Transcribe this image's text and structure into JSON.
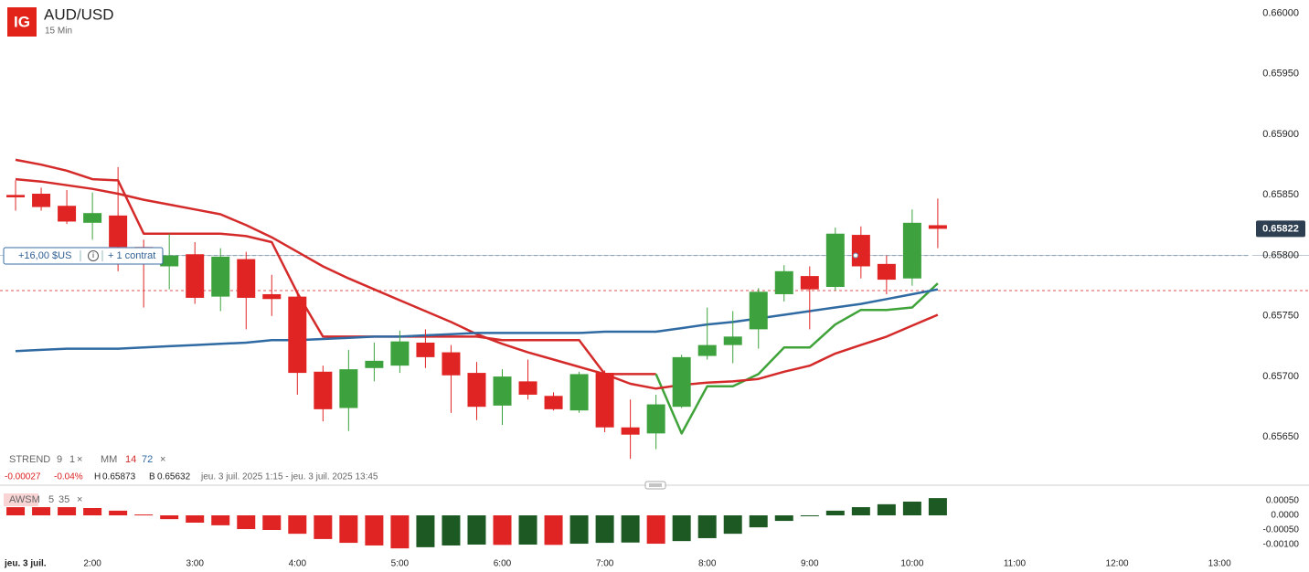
{
  "chart_data": [
    {
      "type": "candlestick",
      "logo": "IG",
      "title": "AUD/USD",
      "subtitle": "15 Min",
      "x": [
        1.25,
        1.5,
        1.75,
        2,
        2.25,
        2.5,
        2.75,
        3,
        3.25,
        3.5,
        3.75,
        4,
        4.25,
        4.5,
        4.75,
        5,
        5.25,
        5.5,
        5.75,
        6,
        6.25,
        6.5,
        6.75,
        7,
        7.25,
        7.5,
        7.75,
        8,
        8.25,
        8.5,
        8.75,
        9,
        9.25,
        9.5,
        9.75,
        10,
        10.25
      ],
      "open": [
        0.6585,
        0.65851,
        0.65841,
        0.65827,
        0.65833,
        0.65807,
        0.65791,
        0.65801,
        0.65766,
        0.65797,
        0.65768,
        0.65766,
        0.65704,
        0.65674,
        0.65707,
        0.65709,
        0.65728,
        0.6572,
        0.65703,
        0.65676,
        0.65696,
        0.65684,
        0.65672,
        0.65703,
        0.65658,
        0.65653,
        0.65675,
        0.65717,
        0.65726,
        0.65739,
        0.65768,
        0.65783,
        0.65774,
        0.65817,
        0.65793,
        0.65781,
        0.65825
      ],
      "high": [
        0.65862,
        0.65856,
        0.65854,
        0.65852,
        0.65873,
        0.65813,
        0.65818,
        0.65811,
        0.65806,
        0.65803,
        0.65784,
        0.65769,
        0.65709,
        0.65722,
        0.65728,
        0.65738,
        0.65739,
        0.65726,
        0.65712,
        0.65706,
        0.65714,
        0.65687,
        0.65704,
        0.65705,
        0.65681,
        0.65685,
        0.65718,
        0.65757,
        0.65754,
        0.65773,
        0.65792,
        0.65791,
        0.65823,
        0.65824,
        0.658,
        0.65838,
        0.65847
      ],
      "low": [
        0.65837,
        0.65837,
        0.65826,
        0.65813,
        0.65787,
        0.65757,
        0.65772,
        0.6576,
        0.65754,
        0.65739,
        0.6575,
        0.65685,
        0.65663,
        0.65655,
        0.65696,
        0.65703,
        0.65707,
        0.6567,
        0.65664,
        0.6566,
        0.65681,
        0.65672,
        0.6567,
        0.65654,
        0.65632,
        0.6564,
        0.65674,
        0.65714,
        0.65711,
        0.65723,
        0.65762,
        0.65739,
        0.65771,
        0.65781,
        0.65768,
        0.65775,
        0.65806
      ],
      "close": [
        0.65848,
        0.6584,
        0.65828,
        0.65835,
        0.65807,
        0.658,
        0.658,
        0.65765,
        0.65799,
        0.65765,
        0.65764,
        0.65703,
        0.65673,
        0.65706,
        0.65713,
        0.65729,
        0.65716,
        0.65701,
        0.65675,
        0.657,
        0.65685,
        0.65673,
        0.65702,
        0.65658,
        0.65652,
        0.65677,
        0.65716,
        0.65726,
        0.65733,
        0.6577,
        0.65787,
        0.65772,
        0.65818,
        0.65791,
        0.6578,
        0.65827,
        0.65822
      ],
      "up_color": "#3da23d",
      "down_color": "#e02424",
      "strend": {
        "name": "STREND",
        "params": [
          9,
          1
        ],
        "down": {
          "color": "#d42a2a",
          "values": [
            0.65879,
            0.65875,
            0.6587,
            0.65863,
            0.65862,
            0.65818,
            0.65818,
            0.65818,
            0.65818,
            0.65816,
            0.65811,
            0.65769,
            0.65733,
            0.65733,
            0.65733,
            0.65733,
            0.65733,
            0.65733,
            0.65733,
            0.6573,
            0.6573,
            0.6573,
            0.6573,
            0.65702,
            0.65702,
            0.65702,
            null,
            null,
            null,
            null,
            null,
            null,
            null,
            null,
            null,
            null,
            null
          ]
        },
        "up": {
          "color": "#3fa33a",
          "values": [
            null,
            null,
            null,
            null,
            null,
            null,
            null,
            null,
            null,
            null,
            null,
            null,
            null,
            null,
            null,
            null,
            null,
            null,
            null,
            null,
            null,
            null,
            null,
            null,
            null,
            0.65702,
            0.65653,
            0.65692,
            0.65692,
            0.65702,
            0.65724,
            0.65724,
            0.65743,
            0.65755,
            0.65755,
            0.65757,
            0.65777
          ]
        }
      },
      "mm": {
        "name": "MM",
        "periods": [
          {
            "period": 14,
            "color": "#d42a2a",
            "values": [
              0.65863,
              0.65861,
              0.65858,
              0.65855,
              0.65851,
              0.65846,
              0.65842,
              0.65838,
              0.65834,
              0.65825,
              0.65815,
              0.65803,
              0.65791,
              0.65781,
              0.65772,
              0.65763,
              0.65754,
              0.65745,
              0.65735,
              0.65727,
              0.6572,
              0.65714,
              0.65708,
              0.65702,
              0.65694,
              0.6569,
              0.65693,
              0.65695,
              0.65696,
              0.65698,
              0.65704,
              0.65709,
              0.65719,
              0.65726,
              0.65733,
              0.65742,
              0.65751
            ]
          },
          {
            "period": 72,
            "color": "#2f6aa3",
            "values": [
              0.65721,
              0.65722,
              0.65723,
              0.65723,
              0.65723,
              0.65724,
              0.65725,
              0.65726,
              0.65727,
              0.65728,
              0.6573,
              0.6573,
              0.65731,
              0.65732,
              0.65733,
              0.65733,
              0.65734,
              0.65735,
              0.65736,
              0.65736,
              0.65736,
              0.65736,
              0.65736,
              0.65737,
              0.65737,
              0.65737,
              0.6574,
              0.65743,
              0.65745,
              0.65748,
              0.65751,
              0.65754,
              0.65757,
              0.6576,
              0.65764,
              0.65768,
              0.65772
            ]
          }
        ]
      },
      "info": {
        "change": "-0.00027",
        "change_pct": "-0.04%",
        "high_label": "H",
        "high": 0.65873,
        "low_label": "B",
        "low": 0.65632,
        "range": "jeu. 3 juil. 2025 1:15 - jeu. 3 juil. 2025 13:45"
      },
      "last_price": 0.65822,
      "position": {
        "price": 0.658,
        "pnl": "+16,00 $US",
        "size": "+ 1 contrat"
      },
      "order_price": 0.65771,
      "date_label": "jeu. 3 juil.",
      "xlim": [
        1.098,
        13.275
      ],
      "xticks": [
        {
          "value": 2,
          "label": "2:00"
        },
        {
          "value": 3,
          "label": "3:00"
        },
        {
          "value": 4,
          "label": "4:00"
        },
        {
          "value": 5,
          "label": "5:00"
        },
        {
          "value": 6,
          "label": "6:00"
        },
        {
          "value": 7,
          "label": "7:00"
        },
        {
          "value": 8,
          "label": "8:00"
        },
        {
          "value": 9,
          "label": "9:00"
        },
        {
          "value": 10,
          "label": "10:00"
        },
        {
          "value": 11,
          "label": "11:00"
        },
        {
          "value": 12,
          "label": "12:00"
        },
        {
          "value": 13,
          "label": "13:00"
        }
      ],
      "ylim": [
        0.65611,
        0.66011
      ],
      "yticks": [
        {
          "value": 0.6565,
          "label": "0.65650"
        },
        {
          "value": 0.657,
          "label": "0.65700"
        },
        {
          "value": 0.6575,
          "label": "0.65750"
        },
        {
          "value": 0.658,
          "label": "0.65800"
        },
        {
          "value": 0.6585,
          "label": "0.65850"
        },
        {
          "value": 0.659,
          "label": "0.65900"
        },
        {
          "value": 0.6595,
          "label": "0.65950"
        },
        {
          "value": 0.66,
          "label": "0.66000"
        }
      ]
    },
    {
      "type": "bar",
      "title": "AWSM",
      "params": [
        5,
        35
      ],
      "values": [
        0.00028,
        0.00028,
        0.00028,
        0.00025,
        0.00016,
        3e-05,
        -0.00013,
        -0.00025,
        -0.00034,
        -0.00047,
        -0.0005,
        -0.00063,
        -0.00081,
        -0.00094,
        -0.00103,
        -0.00113,
        -0.00109,
        -0.00103,
        -0.001,
        -0.00101,
        -0.001,
        -0.00101,
        -0.00097,
        -0.00094,
        -0.00093,
        -0.00097,
        -0.00088,
        -0.00078,
        -0.00063,
        -0.00041,
        -0.00019,
        -3e-05,
        0.00016,
        0.00028,
        0.00038,
        0.00047,
        0.00059
      ],
      "colors": [
        "#e02424",
        "#e02424",
        "#e02424",
        "#e02424",
        "#e02424",
        "#e02424",
        "#e02424",
        "#e02424",
        "#e02424",
        "#e02424",
        "#e02424",
        "#e02424",
        "#e02424",
        "#e02424",
        "#e02424",
        "#e02424",
        "#1d5a23",
        "#1d5a23",
        "#1d5a23",
        "#e02424",
        "#1d5a23",
        "#e02424",
        "#1d5a23",
        "#1d5a23",
        "#1d5a23",
        "#e02424",
        "#1d5a23",
        "#1d5a23",
        "#1d5a23",
        "#1d5a23",
        "#1d5a23",
        "#1d5a23",
        "#1d5a23",
        "#1d5a23",
        "#1d5a23",
        "#1d5a23",
        "#1d5a23"
      ],
      "ylim": [
        -0.00125,
        0.001
      ],
      "yticks": [
        {
          "value": 0.0005,
          "label": "0.00050"
        },
        {
          "value": 0,
          "label": "0.0000"
        },
        {
          "value": -0.0005,
          "label": "-0.00050"
        },
        {
          "value": -0.001,
          "label": "-0.00100"
        }
      ]
    }
  ]
}
